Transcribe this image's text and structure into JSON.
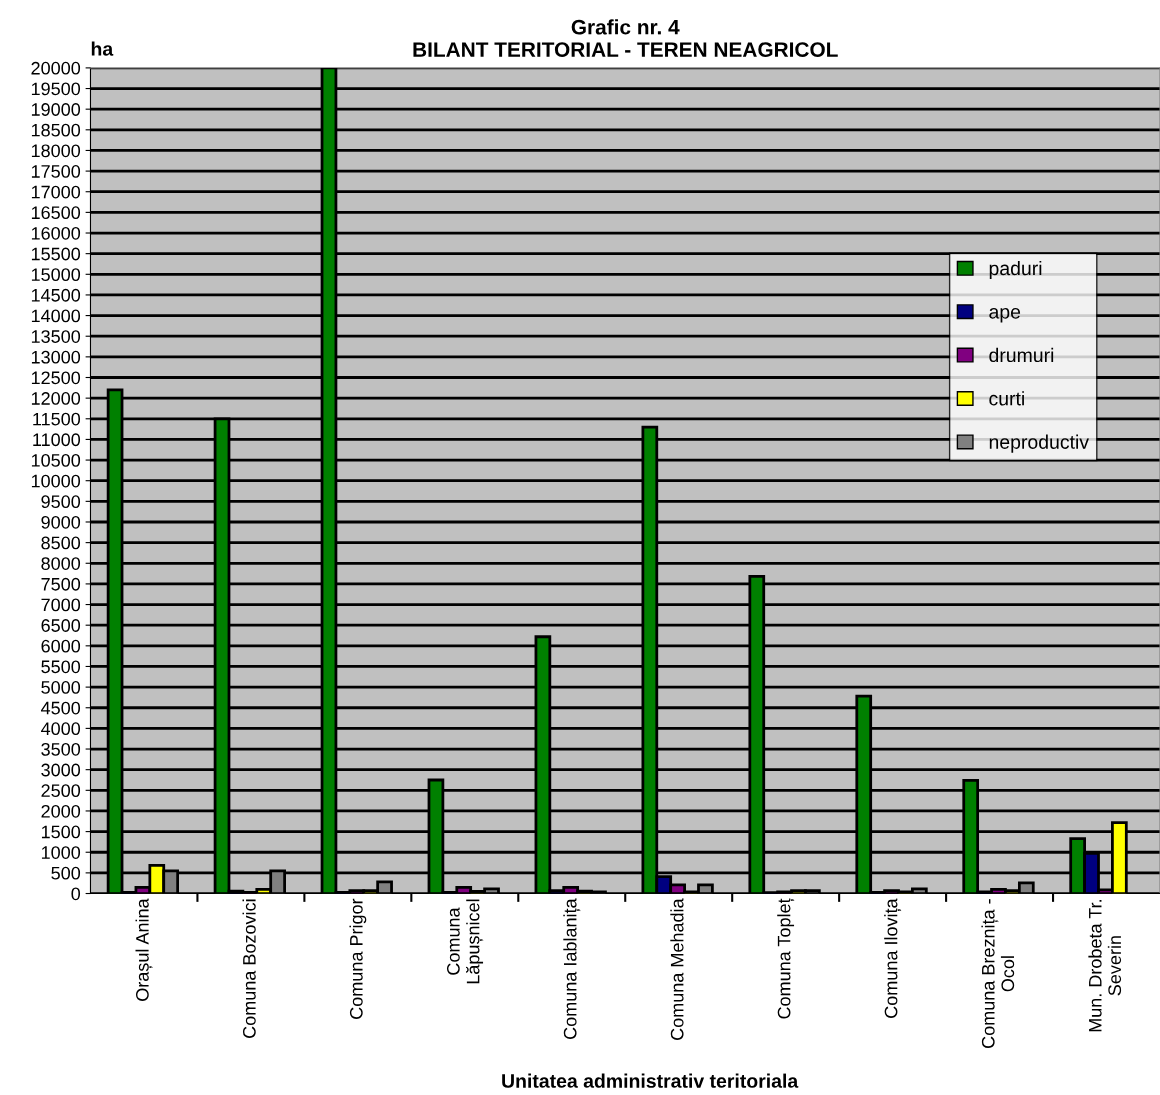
{
  "chart_data": {
    "type": "bar",
    "title": "Grafic nr. 4\nBILANT TERITORIAL - TEREN NEAGRICOL",
    "ylabel": "ha",
    "xlabel": "Unitatea administrativ teritoriala",
    "categories": [
      "Orașul Anina",
      "Comuna Bozovici",
      "Comuna Prigor",
      "Comuna\nLăpușnicel",
      "Comuna Iablanița",
      "Comuna Mehadia",
      "Comuna Topleț",
      "Comuna Ilovița",
      "Comuna Breznița -\nOcol",
      "Mun. Drobeta Tr.\nSeverin"
    ],
    "series": [
      {
        "name": "paduri",
        "color": "#008000",
        "values": [
          12200,
          11500,
          20000,
          2750,
          6220,
          11300,
          7680,
          4780,
          2740,
          1330
        ]
      },
      {
        "name": "ape",
        "color": "#000080",
        "values": [
          30,
          60,
          30,
          30,
          70,
          410,
          20,
          30,
          40,
          970
        ]
      },
      {
        "name": "drumuri",
        "color": "#800080",
        "values": [
          150,
          30,
          70,
          150,
          150,
          210,
          40,
          70,
          100,
          90
        ]
      },
      {
        "name": "curti",
        "color": "#ffff00",
        "values": [
          680,
          100,
          70,
          50,
          60,
          40,
          70,
          40,
          70,
          1720
        ]
      },
      {
        "name": "neproductiv",
        "color": "#808080",
        "values": [
          550,
          550,
          280,
          110,
          40,
          210,
          70,
          110,
          260,
          null
        ]
      }
    ],
    "ylim": [
      0,
      20000
    ],
    "yticks": [
      0,
      500,
      1000,
      1500,
      2000,
      2500,
      3000,
      3500,
      4000,
      4500,
      5000,
      5500,
      6000,
      6500,
      7000,
      7500,
      8000,
      8500,
      9000,
      9500,
      10000,
      10500,
      11000,
      11500,
      12000,
      12500,
      13000,
      13500,
      14000,
      14500,
      15000,
      15500,
      16000,
      16500,
      17000,
      17500,
      18000,
      18500,
      19000,
      19500,
      20000
    ],
    "grid": "y",
    "legend": "center right"
  }
}
